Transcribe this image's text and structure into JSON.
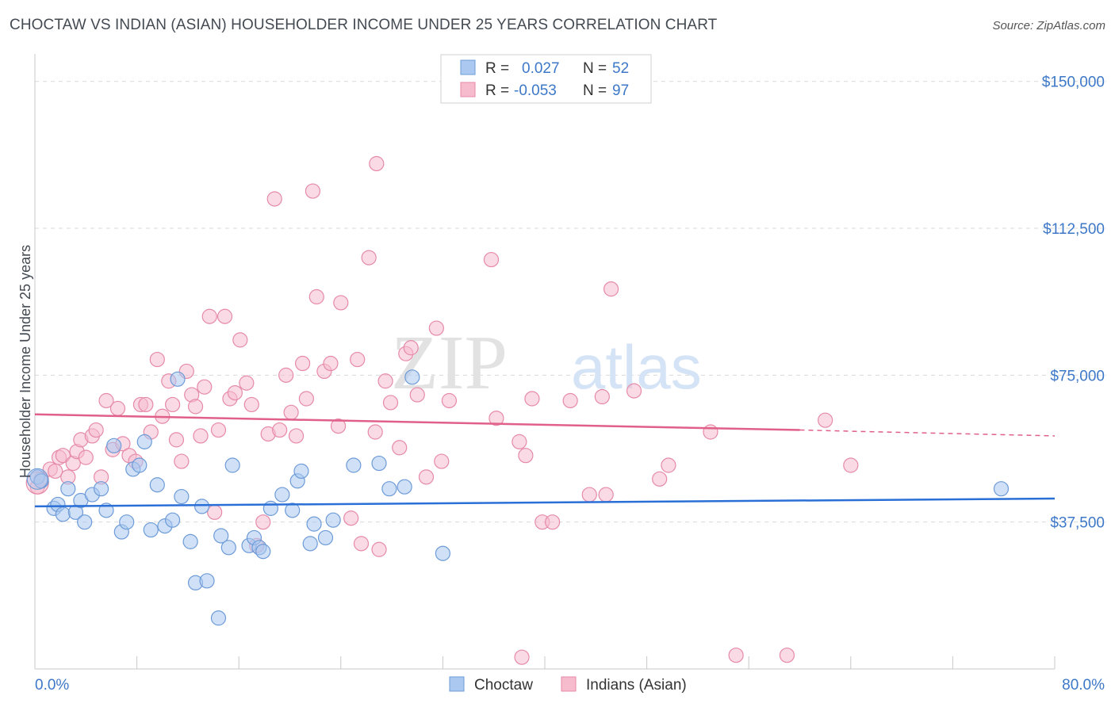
{
  "title": "CHOCTAW VS INDIAN (ASIAN) HOUSEHOLDER INCOME UNDER 25 YEARS CORRELATION CHART",
  "source": "Source: ZipAtlas.com",
  "watermark": {
    "zip": "ZIP",
    "atlas": "atlas"
  },
  "colors": {
    "blue_fill": "#aac8f0",
    "blue_stroke": "#6d9bd8",
    "blue_line": "#2a6fd6",
    "pink_fill": "#f6bccd",
    "pink_stroke": "#e68aa8",
    "pink_line": "#e0608a",
    "tick_text": "#3d78c8",
    "grid": "#d9d9d9"
  },
  "legend": {
    "rows": [
      {
        "r_label": "R =",
        "r_value": "0.027",
        "n_label": "N =",
        "n_value": "52"
      },
      {
        "r_label": "R =",
        "r_value": "-0.053",
        "n_label": "N =",
        "n_value": "97"
      }
    ]
  },
  "chart_data": {
    "type": "scatter",
    "title": "CHOCTAW VS INDIAN (ASIAN) HOUSEHOLDER INCOME UNDER 25 YEARS CORRELATION CHART",
    "xlabel": "",
    "ylabel": "Householder Income Under 25 years",
    "xlim": [
      0,
      80
    ],
    "ylim": [
      0,
      155000
    ],
    "x_tick_labels": [
      "0.0%",
      "80.0%"
    ],
    "y_ticks": [
      37500,
      75000,
      112500,
      150000
    ],
    "y_tick_labels": [
      "$37,500",
      "$75,000",
      "$112,500",
      "$150,000"
    ],
    "series": [
      {
        "name": "Choctaw",
        "trend": {
          "x0": 0,
          "y0": 41500,
          "x1": 80,
          "y1": 43500
        },
        "points": [
          [
            0.2,
            49000
          ],
          [
            0.5,
            48000
          ],
          [
            1.5,
            41000
          ],
          [
            1.8,
            42000
          ],
          [
            2.2,
            39500
          ],
          [
            2.6,
            46000
          ],
          [
            3.2,
            40000
          ],
          [
            3.6,
            43000
          ],
          [
            3.9,
            37500
          ],
          [
            4.5,
            44500
          ],
          [
            5.2,
            46000
          ],
          [
            5.6,
            40500
          ],
          [
            6.2,
            57000
          ],
          [
            6.8,
            35000
          ],
          [
            7.2,
            37500
          ],
          [
            7.7,
            51000
          ],
          [
            8.2,
            52000
          ],
          [
            8.6,
            58000
          ],
          [
            9.1,
            35500
          ],
          [
            9.6,
            47000
          ],
          [
            10.2,
            36500
          ],
          [
            10.8,
            38000
          ],
          [
            11.2,
            74000
          ],
          [
            11.5,
            44000
          ],
          [
            12.2,
            32500
          ],
          [
            12.6,
            22000
          ],
          [
            13.1,
            41500
          ],
          [
            13.5,
            22500
          ],
          [
            14.4,
            13000
          ],
          [
            14.6,
            34000
          ],
          [
            15.2,
            31000
          ],
          [
            15.5,
            52000
          ],
          [
            16.8,
            31500
          ],
          [
            17.2,
            33500
          ],
          [
            17.6,
            31000
          ],
          [
            17.9,
            30000
          ],
          [
            18.5,
            41000
          ],
          [
            19.4,
            44500
          ],
          [
            20.2,
            40500
          ],
          [
            20.6,
            48000
          ],
          [
            20.9,
            50500
          ],
          [
            21.6,
            32000
          ],
          [
            21.9,
            37000
          ],
          [
            22.8,
            33500
          ],
          [
            23.4,
            38000
          ],
          [
            25.0,
            52000
          ],
          [
            27.0,
            52500
          ],
          [
            27.8,
            46000
          ],
          [
            29.0,
            46500
          ],
          [
            29.6,
            74500
          ],
          [
            32.0,
            29500
          ],
          [
            75.8,
            46000
          ]
        ]
      },
      {
        "name": "Indians (Asian)",
        "trend": {
          "x0": 0,
          "y0": 65000,
          "x1": 60,
          "y1": 61000,
          "x_dash_end": 80,
          "y_dash_end": 59500
        },
        "points": [
          [
            0.2,
            46500
          ],
          [
            0.5,
            48500
          ],
          [
            1.2,
            51000
          ],
          [
            1.6,
            50500
          ],
          [
            1.9,
            54000
          ],
          [
            2.2,
            54500
          ],
          [
            2.6,
            49000
          ],
          [
            3.0,
            52500
          ],
          [
            3.3,
            55500
          ],
          [
            3.6,
            58500
          ],
          [
            4.0,
            54000
          ],
          [
            4.5,
            59500
          ],
          [
            4.8,
            61000
          ],
          [
            5.2,
            49000
          ],
          [
            5.6,
            68500
          ],
          [
            6.1,
            56000
          ],
          [
            6.5,
            66500
          ],
          [
            6.9,
            57500
          ],
          [
            7.4,
            54500
          ],
          [
            7.9,
            53000
          ],
          [
            8.3,
            67500
          ],
          [
            8.7,
            67500
          ],
          [
            9.1,
            60500
          ],
          [
            9.6,
            79000
          ],
          [
            10.0,
            64500
          ],
          [
            10.5,
            73500
          ],
          [
            10.8,
            67500
          ],
          [
            11.1,
            58500
          ],
          [
            11.5,
            53000
          ],
          [
            11.9,
            76000
          ],
          [
            12.3,
            70000
          ],
          [
            12.6,
            67000
          ],
          [
            13.0,
            59500
          ],
          [
            13.3,
            72000
          ],
          [
            13.7,
            90000
          ],
          [
            14.1,
            40000
          ],
          [
            14.4,
            61000
          ],
          [
            14.9,
            90000
          ],
          [
            15.3,
            69000
          ],
          [
            15.7,
            70500
          ],
          [
            16.1,
            84000
          ],
          [
            16.6,
            73000
          ],
          [
            17.0,
            67500
          ],
          [
            17.4,
            31500
          ],
          [
            17.9,
            37500
          ],
          [
            18.3,
            60000
          ],
          [
            18.8,
            120000
          ],
          [
            19.2,
            61000
          ],
          [
            19.7,
            75000
          ],
          [
            20.1,
            65500
          ],
          [
            20.5,
            59500
          ],
          [
            21.0,
            78000
          ],
          [
            21.3,
            69000
          ],
          [
            21.8,
            122000
          ],
          [
            22.1,
            95000
          ],
          [
            22.7,
            76000
          ],
          [
            23.2,
            78000
          ],
          [
            23.8,
            62000
          ],
          [
            24.0,
            93500
          ],
          [
            24.8,
            38500
          ],
          [
            25.3,
            79000
          ],
          [
            25.6,
            32000
          ],
          [
            26.2,
            105000
          ],
          [
            26.7,
            60500
          ],
          [
            27.0,
            30500
          ],
          [
            27.5,
            73500
          ],
          [
            27.9,
            68000
          ],
          [
            28.6,
            56500
          ],
          [
            29.1,
            80500
          ],
          [
            29.5,
            82000
          ],
          [
            30.0,
            70000
          ],
          [
            30.7,
            49000
          ],
          [
            31.5,
            87000
          ],
          [
            31.9,
            53000
          ],
          [
            32.5,
            68500
          ],
          [
            36.2,
            64000
          ],
          [
            26.8,
            129000
          ],
          [
            35.8,
            104500
          ],
          [
            38.0,
            58000
          ],
          [
            38.5,
            54500
          ],
          [
            39.0,
            69000
          ],
          [
            39.8,
            37500
          ],
          [
            40.6,
            37500
          ],
          [
            42.0,
            68500
          ],
          [
            43.5,
            44500
          ],
          [
            44.5,
            69500
          ],
          [
            44.8,
            44500
          ],
          [
            45.2,
            97000
          ],
          [
            47.0,
            71000
          ],
          [
            49.0,
            48500
          ],
          [
            49.7,
            52000
          ],
          [
            53.0,
            60500
          ],
          [
            55.0,
            3500
          ],
          [
            59.0,
            3500
          ],
          [
            62.0,
            63500
          ],
          [
            64.0,
            52000
          ],
          [
            38.2,
            3000
          ]
        ]
      }
    ]
  }
}
